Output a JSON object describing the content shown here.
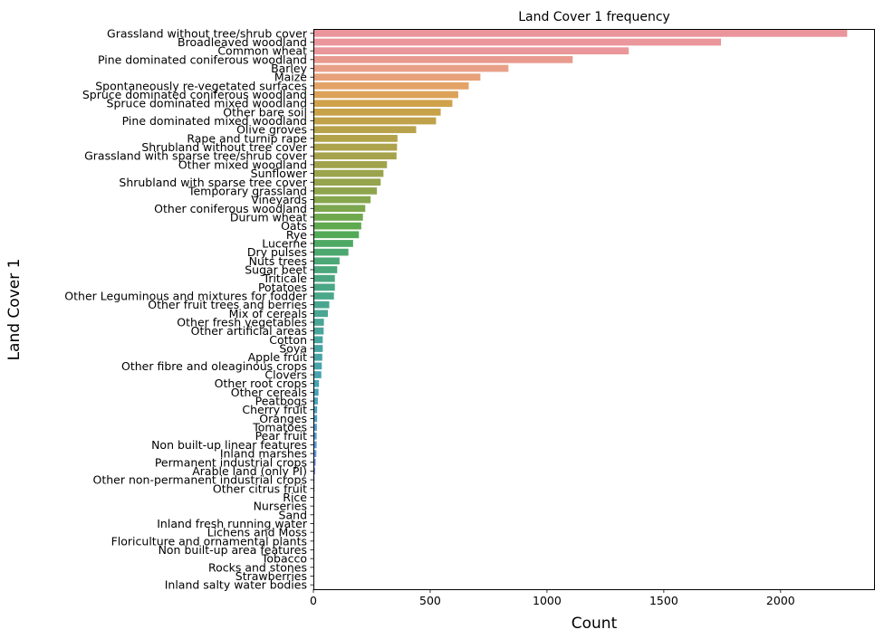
{
  "chart_data": {
    "type": "bar",
    "orientation": "horizontal",
    "title": "Land Cover 1 frequency",
    "xlabel": "Count",
    "ylabel": "Land Cover 1",
    "xlim": [
      0,
      2400
    ],
    "xticks": [
      0,
      500,
      1000,
      1500,
      2000
    ],
    "grid": false,
    "categories": [
      "Grassland without tree/shrub cover",
      "Broadleaved woodland",
      "Common wheat",
      "Pine dominated coniferous woodland",
      "Barley",
      "Maize",
      "Spontaneously re-vegetated surfaces",
      "Spruce dominated coniferous woodland",
      "Spruce dominated mixed woodland",
      "Other bare soil",
      "Pine dominated mixed woodland",
      "Olive groves",
      "Rape and turnip rape",
      "Shrubland without tree cover",
      "Grassland with sparse tree/shrub cover",
      "Other mixed woodland",
      "Sunflower",
      "Shrubland with sparse tree cover",
      "Temporary grassland",
      "Vineyards",
      "Other coniferous woodland",
      "Durum wheat",
      "Oats",
      "Rye",
      "Lucerne",
      "Dry pulses",
      "Nuts trees",
      "Sugar beet",
      "Triticale",
      "Potatoes",
      "Other Leguminous  and mixtures for fodder",
      "Other fruit trees and berries",
      "Mix of cereals",
      "Other fresh vegetables",
      "Other artificial areas",
      "Cotton",
      "Soya",
      "Apple fruit",
      "Other fibre and oleaginous crops",
      "Clovers",
      "Other root crops",
      "Other cereals",
      "Peatbogs",
      "Cherry fruit",
      "Oranges",
      "Tomatoes",
      "Pear fruit",
      "Non built-up linear features",
      "Inland marshes",
      "Permanent industrial crops",
      "Arable land (only PI)",
      "Other non-permanent industrial crops",
      "Other citrus fruit",
      "Rice",
      "Nurseries",
      "Sand",
      "Inland fresh running water",
      "Lichens and Moss",
      "Floriculture and ornamental plants",
      "Non built-up area features",
      "Tobacco",
      "Rocks and stones",
      "Strawberries",
      "Inland salty water bodies"
    ],
    "values": [
      2285,
      1745,
      1350,
      1110,
      835,
      715,
      665,
      620,
      595,
      545,
      525,
      440,
      360,
      358,
      356,
      315,
      300,
      288,
      272,
      245,
      222,
      212,
      205,
      195,
      170,
      150,
      112,
      102,
      92,
      92,
      88,
      68,
      62,
      45,
      44,
      40,
      40,
      38,
      36,
      34,
      24,
      22,
      19,
      16,
      16,
      15,
      14,
      14,
      13,
      10,
      8,
      5,
      5,
      4,
      4,
      3,
      3,
      2,
      2,
      2,
      2,
      1,
      1,
      1
    ],
    "colors": [
      "#ea959c",
      "#ea969b",
      "#e9979a",
      "#e99a8f",
      "#e9a088",
      "#e7a27a",
      "#e3a367",
      "#dba258",
      "#cfa24b",
      "#c7a249",
      "#bfa24a",
      "#b8a24b",
      "#b2a34b",
      "#aca34b",
      "#a6a34c",
      "#a1a34c",
      "#9ba44c",
      "#95a44d",
      "#8ea54d",
      "#86a64d",
      "#7ca74e",
      "#70a84e",
      "#5fa94e",
      "#52aa56",
      "#4ea965",
      "#4da86f",
      "#4ca876",
      "#4ba77c",
      "#4ba781",
      "#4aa786",
      "#4aa78a",
      "#49a68e",
      "#49a692",
      "#49a596",
      "#49a59a",
      "#48a59e",
      "#48a4a2",
      "#48a4a6",
      "#48a4aa",
      "#48a3ae",
      "#48a3b3",
      "#48a2b7",
      "#49a2bc",
      "#4aa1c2",
      "#4ba0c8",
      "#4e9fcf",
      "#529dd6",
      "#5a9bdd",
      "#6598e3",
      "#7294e6",
      "#8090e8",
      "#8d8be8",
      "#9a87e6",
      "#a683e3",
      "#b17fdf",
      "#bb7cdb",
      "#c479d6",
      "#cc77d1",
      "#d376cb",
      "#d976c4",
      "#de77bd",
      "#e279b5",
      "#e57cad",
      "#e780a4"
    ]
  }
}
